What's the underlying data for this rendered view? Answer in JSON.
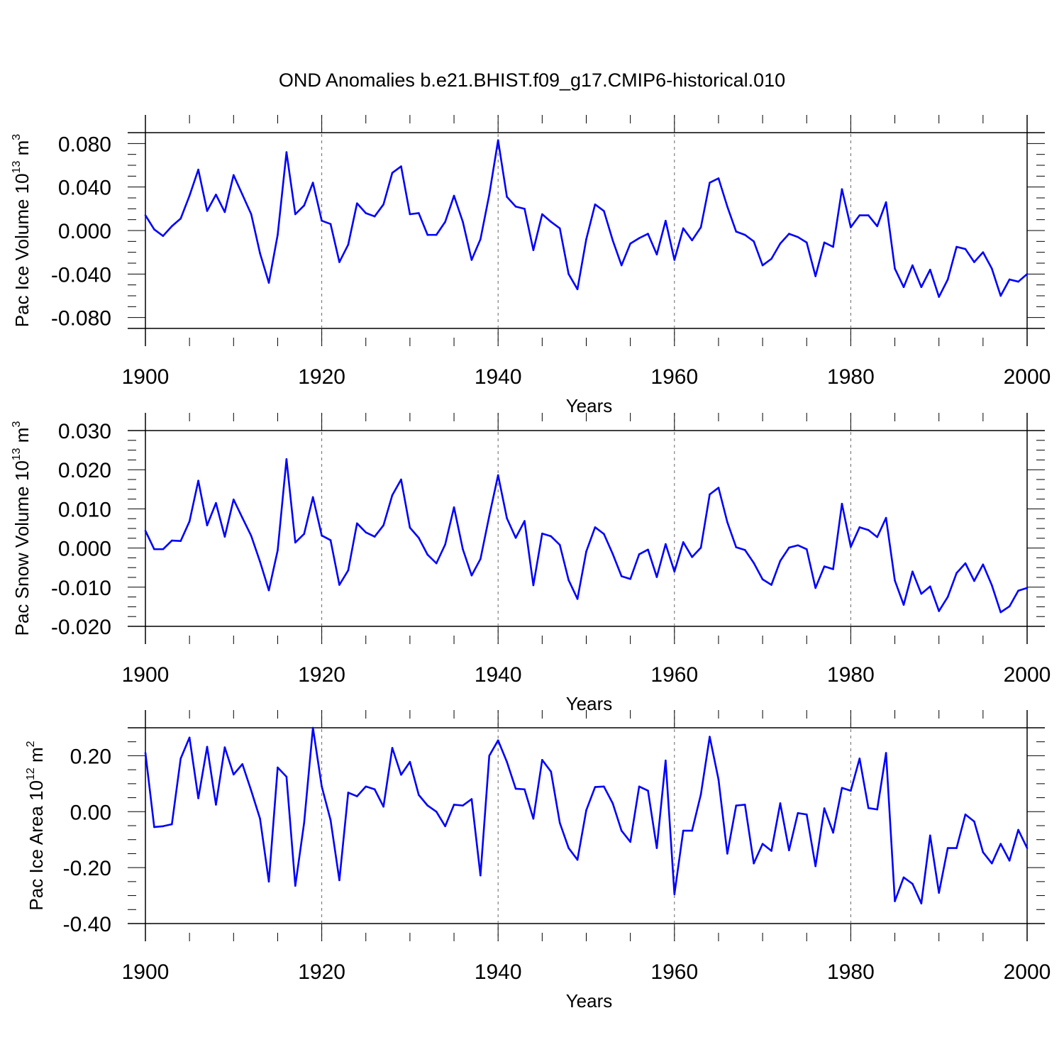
{
  "title": "OND Anomalies b.e21.BHIST.f09_g17.CMIP6-historical.010",
  "colors": {
    "series": "#0000ff",
    "axis": "#000000",
    "grid": "#666666"
  },
  "chart_data": [
    {
      "type": "line",
      "ylabel_main": "Pac Ice Volume 10",
      "ylabel_exp": "13",
      "ylabel_unit": " m",
      "ylabel_unit_exp": "3",
      "xlabel": "Years",
      "xlim": [
        1900,
        2000
      ],
      "ylim": [
        -0.09,
        0.09
      ],
      "x_ticks": [
        "1900",
        "1920",
        "1940",
        "1960",
        "1980",
        "2000"
      ],
      "y_ticks": [
        "0.080",
        "0.040",
        "0.000",
        "-0.040",
        "-0.080"
      ],
      "y_tick_values": [
        0.08,
        0.04,
        0.0,
        -0.04,
        -0.08
      ],
      "y_minor_step": 0.01,
      "vertical_grid_years": [
        1920,
        1940,
        1960,
        1980
      ],
      "x_start": 1900,
      "values": [
        0.014,
        0.001,
        -0.005,
        0.004,
        0.011,
        0.032,
        0.056,
        0.018,
        0.033,
        0.017,
        0.051,
        0.033,
        0.015,
        -0.021,
        -0.048,
        -0.004,
        0.072,
        0.015,
        0.023,
        0.044,
        0.009,
        0.006,
        -0.029,
        -0.013,
        0.025,
        0.016,
        0.013,
        0.024,
        0.053,
        0.059,
        0.015,
        0.016,
        -0.004,
        -0.004,
        0.008,
        0.032,
        0.008,
        -0.027,
        -0.008,
        0.033,
        0.083,
        0.031,
        0.022,
        0.02,
        -0.018,
        0.015,
        0.008,
        0.002,
        -0.04,
        -0.054,
        -0.008,
        0.024,
        0.018,
        -0.009,
        -0.032,
        -0.012,
        -0.007,
        -0.003,
        -0.022,
        0.009,
        -0.027,
        0.002,
        -0.009,
        0.003,
        0.044,
        0.048,
        0.022,
        -0.001,
        -0.004,
        -0.01,
        -0.032,
        -0.026,
        -0.012,
        -0.003,
        -0.006,
        -0.011,
        -0.042,
        -0.011,
        -0.015,
        0.038,
        0.003,
        0.014,
        0.014,
        0.004,
        0.026,
        -0.035,
        -0.052,
        -0.032,
        -0.052,
        -0.036,
        -0.061,
        -0.045,
        -0.015,
        -0.017,
        -0.029,
        -0.02,
        -0.035,
        -0.06,
        -0.045,
        -0.047,
        -0.04
      ]
    },
    {
      "type": "line",
      "ylabel_main": "Pac Snow Volume 10",
      "ylabel_exp": "13",
      "ylabel_unit": " m",
      "ylabel_unit_exp": "3",
      "xlabel": "Years",
      "xlim": [
        1900,
        2000
      ],
      "ylim": [
        -0.02,
        0.03
      ],
      "x_ticks": [
        "1900",
        "1920",
        "1940",
        "1960",
        "1980",
        "2000"
      ],
      "y_ticks": [
        "0.030",
        "0.020",
        "0.010",
        "0.000",
        "-0.010",
        "-0.020"
      ],
      "y_tick_values": [
        0.03,
        0.02,
        0.01,
        0.0,
        -0.01,
        -0.02
      ],
      "y_minor_step": 0.0025,
      "vertical_grid_years": [
        1920,
        1940,
        1960,
        1980
      ],
      "x_start": 1900,
      "values": [
        0.0044,
        -0.0003,
        -0.0003,
        0.0019,
        0.0018,
        0.0068,
        0.0172,
        0.0058,
        0.0115,
        0.0029,
        0.0124,
        0.0077,
        0.0031,
        -0.0035,
        -0.0108,
        -0.0006,
        0.0227,
        0.0014,
        0.0036,
        0.013,
        0.0032,
        0.002,
        -0.0094,
        -0.0057,
        0.0063,
        0.004,
        0.0029,
        0.0058,
        0.0135,
        0.0175,
        0.0052,
        0.0026,
        -0.0017,
        -0.0039,
        0.0009,
        0.0104,
        -0.0003,
        -0.007,
        -0.0028,
        0.0082,
        0.0186,
        0.0076,
        0.0026,
        0.0069,
        -0.0095,
        0.0037,
        0.003,
        0.0008,
        -0.0082,
        -0.013,
        -0.0009,
        0.0053,
        0.0036,
        -0.0015,
        -0.0072,
        -0.0079,
        -0.0016,
        -0.0004,
        -0.0074,
        0.001,
        -0.006,
        0.0015,
        -0.0023,
        0.0001,
        0.0137,
        0.0154,
        0.0066,
        0.0002,
        -0.0005,
        -0.0038,
        -0.008,
        -0.0094,
        -0.0033,
        0.0001,
        0.0007,
        -0.0003,
        -0.0102,
        -0.0047,
        -0.0054,
        0.0113,
        0.0003,
        0.0053,
        0.0046,
        0.0028,
        0.0077,
        -0.0083,
        -0.0145,
        -0.006,
        -0.0117,
        -0.0098,
        -0.0161,
        -0.0125,
        -0.0064,
        -0.0039,
        -0.0084,
        -0.0042,
        -0.0095,
        -0.0164,
        -0.0149,
        -0.0109,
        -0.0102
      ]
    },
    {
      "type": "line",
      "ylabel_main": "Pac Ice Area 10",
      "ylabel_exp": "12",
      "ylabel_unit": " m",
      "ylabel_unit_exp": "2",
      "xlabel": "Years",
      "xlim": [
        1900,
        2000
      ],
      "ylim": [
        -0.4,
        0.3
      ],
      "x_ticks": [
        "1900",
        "1920",
        "1940",
        "1960",
        "1980",
        "2000"
      ],
      "y_ticks": [
        "0.20",
        "0.00",
        "-0.20",
        "-0.40"
      ],
      "y_tick_values": [
        0.2,
        0.0,
        -0.2,
        -0.4
      ],
      "y_minor_step": 0.05,
      "vertical_grid_years": [
        1920,
        1940,
        1960,
        1980
      ],
      "x_start": 1900,
      "values": [
        0.21,
        -0.055,
        -0.052,
        -0.045,
        0.19,
        0.265,
        0.048,
        0.232,
        0.025,
        0.23,
        0.133,
        0.17,
        0.075,
        -0.025,
        -0.25,
        0.158,
        0.125,
        -0.265,
        -0.04,
        0.3,
        0.09,
        -0.03,
        -0.245,
        0.068,
        0.055,
        0.09,
        0.08,
        0.018,
        0.228,
        0.132,
        0.178,
        0.06,
        0.022,
        0.0,
        -0.052,
        0.025,
        0.022,
        0.045,
        -0.228,
        0.2,
        0.255,
        0.178,
        0.082,
        0.08,
        -0.025,
        0.185,
        0.143,
        -0.04,
        -0.13,
        -0.172,
        0.005,
        0.088,
        0.09,
        0.03,
        -0.068,
        -0.108,
        0.09,
        0.075,
        -0.13,
        0.183,
        -0.295,
        -0.068,
        -0.068,
        0.062,
        0.268,
        0.115,
        -0.15,
        0.022,
        0.025,
        -0.185,
        -0.115,
        -0.14,
        0.03,
        -0.138,
        -0.005,
        -0.01,
        -0.195,
        0.012,
        -0.075,
        0.085,
        0.075,
        0.19,
        0.013,
        0.008,
        0.21,
        -0.32,
        -0.235,
        -0.258,
        -0.328,
        -0.085,
        -0.29,
        -0.13,
        -0.13,
        -0.01,
        -0.035,
        -0.145,
        -0.185,
        -0.115,
        -0.175,
        -0.065,
        -0.13
      ]
    }
  ]
}
